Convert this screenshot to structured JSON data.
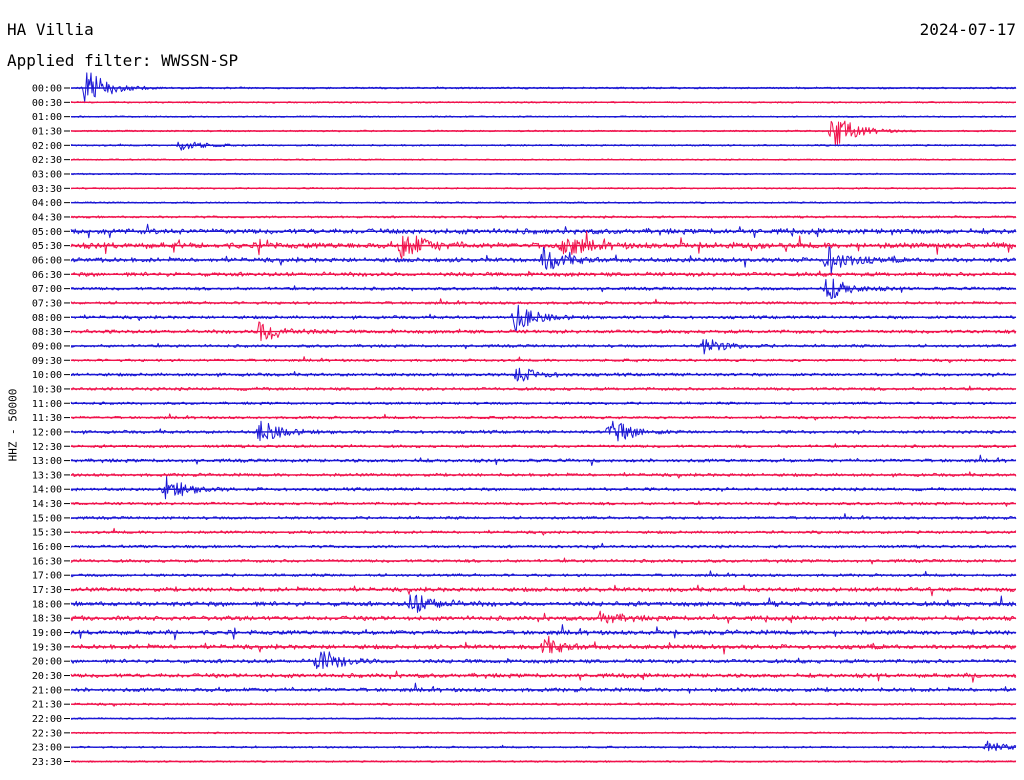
{
  "header": {
    "station": "HA Villia",
    "date": "2024-07-17",
    "filter": "Applied filter: WWSSN-SP"
  },
  "colors": {
    "trace_a": "#1a16d4",
    "trace_b": "#f0124c"
  },
  "chart_data": {
    "type": "line",
    "title": "HA Villia",
    "ylabel": "HHZ - 50000",
    "grid": false,
    "row_colors": [
      "blue",
      "red"
    ],
    "rows": [
      {
        "label": "00:00",
        "activity": 0.12
      },
      {
        "label": "00:30",
        "activity": 0.05
      },
      {
        "label": "01:00",
        "activity": 0.04
      },
      {
        "label": "01:30",
        "activity": 0.06
      },
      {
        "label": "02:00",
        "activity": 0.08
      },
      {
        "label": "02:30",
        "activity": 0.03
      },
      {
        "label": "03:00",
        "activity": 0.03
      },
      {
        "label": "03:30",
        "activity": 0.05
      },
      {
        "label": "04:00",
        "activity": 0.07
      },
      {
        "label": "04:30",
        "activity": 0.18
      },
      {
        "label": "05:00",
        "activity": 0.75
      },
      {
        "label": "05:30",
        "activity": 0.85
      },
      {
        "label": "06:00",
        "activity": 0.6
      },
      {
        "label": "06:30",
        "activity": 0.55
      },
      {
        "label": "07:00",
        "activity": 0.35
      },
      {
        "label": "07:30",
        "activity": 0.3
      },
      {
        "label": "08:00",
        "activity": 0.35
      },
      {
        "label": "08:30",
        "activity": 0.45
      },
      {
        "label": "09:00",
        "activity": 0.3
      },
      {
        "label": "09:30",
        "activity": 0.25
      },
      {
        "label": "10:00",
        "activity": 0.35
      },
      {
        "label": "10:30",
        "activity": 0.35
      },
      {
        "label": "11:00",
        "activity": 0.25
      },
      {
        "label": "11:30",
        "activity": 0.25
      },
      {
        "label": "12:00",
        "activity": 0.35
      },
      {
        "label": "12:30",
        "activity": 0.3
      },
      {
        "label": "13:00",
        "activity": 0.4
      },
      {
        "label": "13:30",
        "activity": 0.35
      },
      {
        "label": "14:00",
        "activity": 0.35
      },
      {
        "label": "14:30",
        "activity": 0.3
      },
      {
        "label": "15:00",
        "activity": 0.3
      },
      {
        "label": "15:30",
        "activity": 0.3
      },
      {
        "label": "16:00",
        "activity": 0.3
      },
      {
        "label": "16:30",
        "activity": 0.35
      },
      {
        "label": "17:00",
        "activity": 0.3
      },
      {
        "label": "17:30",
        "activity": 0.55
      },
      {
        "label": "18:00",
        "activity": 0.65
      },
      {
        "label": "18:30",
        "activity": 0.6
      },
      {
        "label": "19:00",
        "activity": 0.6
      },
      {
        "label": "19:30",
        "activity": 0.6
      },
      {
        "label": "20:00",
        "activity": 0.5
      },
      {
        "label": "20:30",
        "activity": 0.55
      },
      {
        "label": "21:00",
        "activity": 0.5
      },
      {
        "label": "21:30",
        "activity": 0.2
      },
      {
        "label": "22:00",
        "activity": 0.05
      },
      {
        "label": "22:30",
        "activity": 0.08
      },
      {
        "label": "23:00",
        "activity": 0.12
      },
      {
        "label": "23:30",
        "activity": 0.08
      }
    ],
    "events": [
      {
        "row": "00:00",
        "t": 0.015,
        "amp": 1.0
      },
      {
        "row": "01:30",
        "t": 0.805,
        "amp": 1.0
      },
      {
        "row": "02:00",
        "t": 0.115,
        "amp": 0.3
      },
      {
        "row": "05:30",
        "t": 0.35,
        "amp": 0.8
      },
      {
        "row": "05:30",
        "t": 0.52,
        "amp": 0.6
      },
      {
        "row": "06:00",
        "t": 0.5,
        "amp": 0.6
      },
      {
        "row": "06:00",
        "t": 0.8,
        "amp": 0.7
      },
      {
        "row": "07:00",
        "t": 0.8,
        "amp": 0.6
      },
      {
        "row": "08:00",
        "t": 0.47,
        "amp": 0.7
      },
      {
        "row": "08:30",
        "t": 0.2,
        "amp": 0.6
      },
      {
        "row": "09:00",
        "t": 0.67,
        "amp": 0.4
      },
      {
        "row": "10:00",
        "t": 0.47,
        "amp": 0.4
      },
      {
        "row": "12:00",
        "t": 0.2,
        "amp": 0.6
      },
      {
        "row": "12:00",
        "t": 0.57,
        "amp": 0.7
      },
      {
        "row": "14:00",
        "t": 0.1,
        "amp": 0.6
      },
      {
        "row": "18:00",
        "t": 0.36,
        "amp": 0.6
      },
      {
        "row": "18:30",
        "t": 0.56,
        "amp": 0.3
      },
      {
        "row": "19:30",
        "t": 0.5,
        "amp": 0.4
      },
      {
        "row": "20:00",
        "t": 0.26,
        "amp": 0.7
      },
      {
        "row": "23:00",
        "t": 0.97,
        "amp": 0.3
      }
    ]
  }
}
